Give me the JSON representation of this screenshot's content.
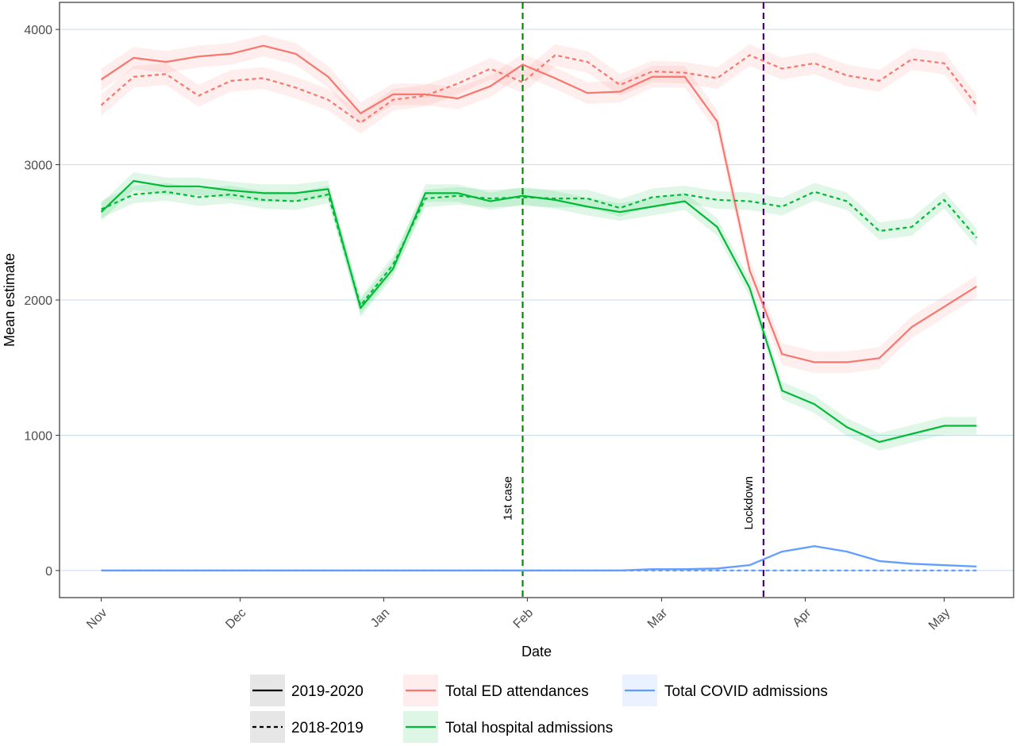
{
  "chart_data": {
    "type": "line",
    "xlabel": "Date",
    "ylabel": "Mean estimate",
    "ylim": [
      -200,
      4200
    ],
    "yticks": [
      0,
      1000,
      2000,
      3000,
      4000
    ],
    "xlim": [
      "2019-10-23",
      "2020-05-16"
    ],
    "xticks": [
      {
        "label": "Nov",
        "date": "2019-11-01"
      },
      {
        "label": "Dec",
        "date": "2019-12-01"
      },
      {
        "label": "Jan",
        "date": "2020-01-01"
      },
      {
        "label": "Feb",
        "date": "2020-02-01"
      },
      {
        "label": "Mar",
        "date": "2020-03-01"
      },
      {
        "label": "Apr",
        "date": "2020-04-01"
      },
      {
        "label": "May",
        "date": "2020-05-01"
      }
    ],
    "grid": "horizontal",
    "legend_position": "bottom",
    "linetype_legend": [
      {
        "label": "2019-2020",
        "style": "solid"
      },
      {
        "label": "2018-2019",
        "style": "dashed"
      }
    ],
    "color_legend": [
      {
        "label": "Total ED attendances",
        "color": "#F8766D"
      },
      {
        "label": "Total hospital admissions",
        "color": "#00BA38"
      },
      {
        "label": "Total COVID admissions",
        "color": "#619CFF"
      }
    ],
    "annotations": [
      {
        "label": "1st case",
        "date": "2020-01-31",
        "color": "#008B00"
      },
      {
        "label": "Lockdown",
        "date": "2020-03-23",
        "color": "#4B0082"
      }
    ],
    "x": [
      "2019-11-01",
      "2019-11-08",
      "2019-11-15",
      "2019-11-22",
      "2019-11-29",
      "2019-12-06",
      "2019-12-13",
      "2019-12-20",
      "2019-12-27",
      "2020-01-03",
      "2020-01-10",
      "2020-01-17",
      "2020-01-24",
      "2020-01-31",
      "2020-02-07",
      "2020-02-14",
      "2020-02-21",
      "2020-02-28",
      "2020-03-06",
      "2020-03-13",
      "2020-03-20",
      "2020-03-27",
      "2020-04-03",
      "2020-04-10",
      "2020-04-17",
      "2020-04-24",
      "2020-05-01",
      "2020-05-08"
    ],
    "series": [
      {
        "group": "Total ED attendances",
        "period": "2019-2020",
        "color": "#F8766D",
        "dashed": false,
        "band": 80,
        "values": [
          3630,
          3790,
          3760,
          3800,
          3820,
          3880,
          3820,
          3650,
          3380,
          3520,
          3520,
          3490,
          3580,
          3740,
          3640,
          3530,
          3540,
          3650,
          3650,
          3320,
          2220,
          1600,
          1540,
          1540,
          1570,
          1800,
          1950,
          2100
        ]
      },
      {
        "group": "Total ED attendances",
        "period": "2018-2019",
        "color": "#F8766D",
        "dashed": true,
        "band": 80,
        "values": [
          3440,
          3650,
          3670,
          3510,
          3620,
          3640,
          3570,
          3480,
          3310,
          3480,
          3510,
          3600,
          3710,
          3610,
          3810,
          3760,
          3590,
          3690,
          3680,
          3640,
          3810,
          3710,
          3750,
          3660,
          3620,
          3780,
          3750,
          3440
        ]
      },
      {
        "group": "Total hospital admissions",
        "period": "2019-2020",
        "color": "#00BA38",
        "dashed": false,
        "band": 65,
        "values": [
          2650,
          2880,
          2840,
          2840,
          2810,
          2790,
          2790,
          2820,
          1940,
          2230,
          2790,
          2790,
          2730,
          2770,
          2740,
          2690,
          2650,
          2690,
          2730,
          2540,
          2090,
          1330,
          1230,
          1060,
          950,
          1010,
          1070,
          1070
        ]
      },
      {
        "group": "Total hospital admissions",
        "period": "2018-2019",
        "color": "#00BA38",
        "dashed": true,
        "band": 65,
        "values": [
          2670,
          2780,
          2800,
          2760,
          2780,
          2740,
          2730,
          2780,
          1960,
          2260,
          2750,
          2770,
          2750,
          2760,
          2750,
          2750,
          2680,
          2760,
          2780,
          2740,
          2730,
          2690,
          2800,
          2730,
          2510,
          2540,
          2740,
          2460
        ]
      },
      {
        "group": "Total COVID admissions",
        "period": "2019-2020",
        "color": "#619CFF",
        "dashed": false,
        "band": 10,
        "values": [
          0,
          0,
          0,
          0,
          0,
          0,
          0,
          0,
          0,
          0,
          0,
          0,
          0,
          0,
          0,
          0,
          0,
          10,
          10,
          15,
          40,
          140,
          180,
          140,
          70,
          50,
          40,
          30
        ]
      },
      {
        "group": "Total COVID admissions",
        "period": "2018-2019",
        "color": "#619CFF",
        "dashed": true,
        "band": 5,
        "values": [
          0,
          0,
          0,
          0,
          0,
          0,
          0,
          0,
          0,
          0,
          0,
          0,
          0,
          0,
          0,
          0,
          0,
          0,
          0,
          0,
          0,
          0,
          0,
          0,
          0,
          0,
          0,
          0
        ]
      }
    ]
  }
}
